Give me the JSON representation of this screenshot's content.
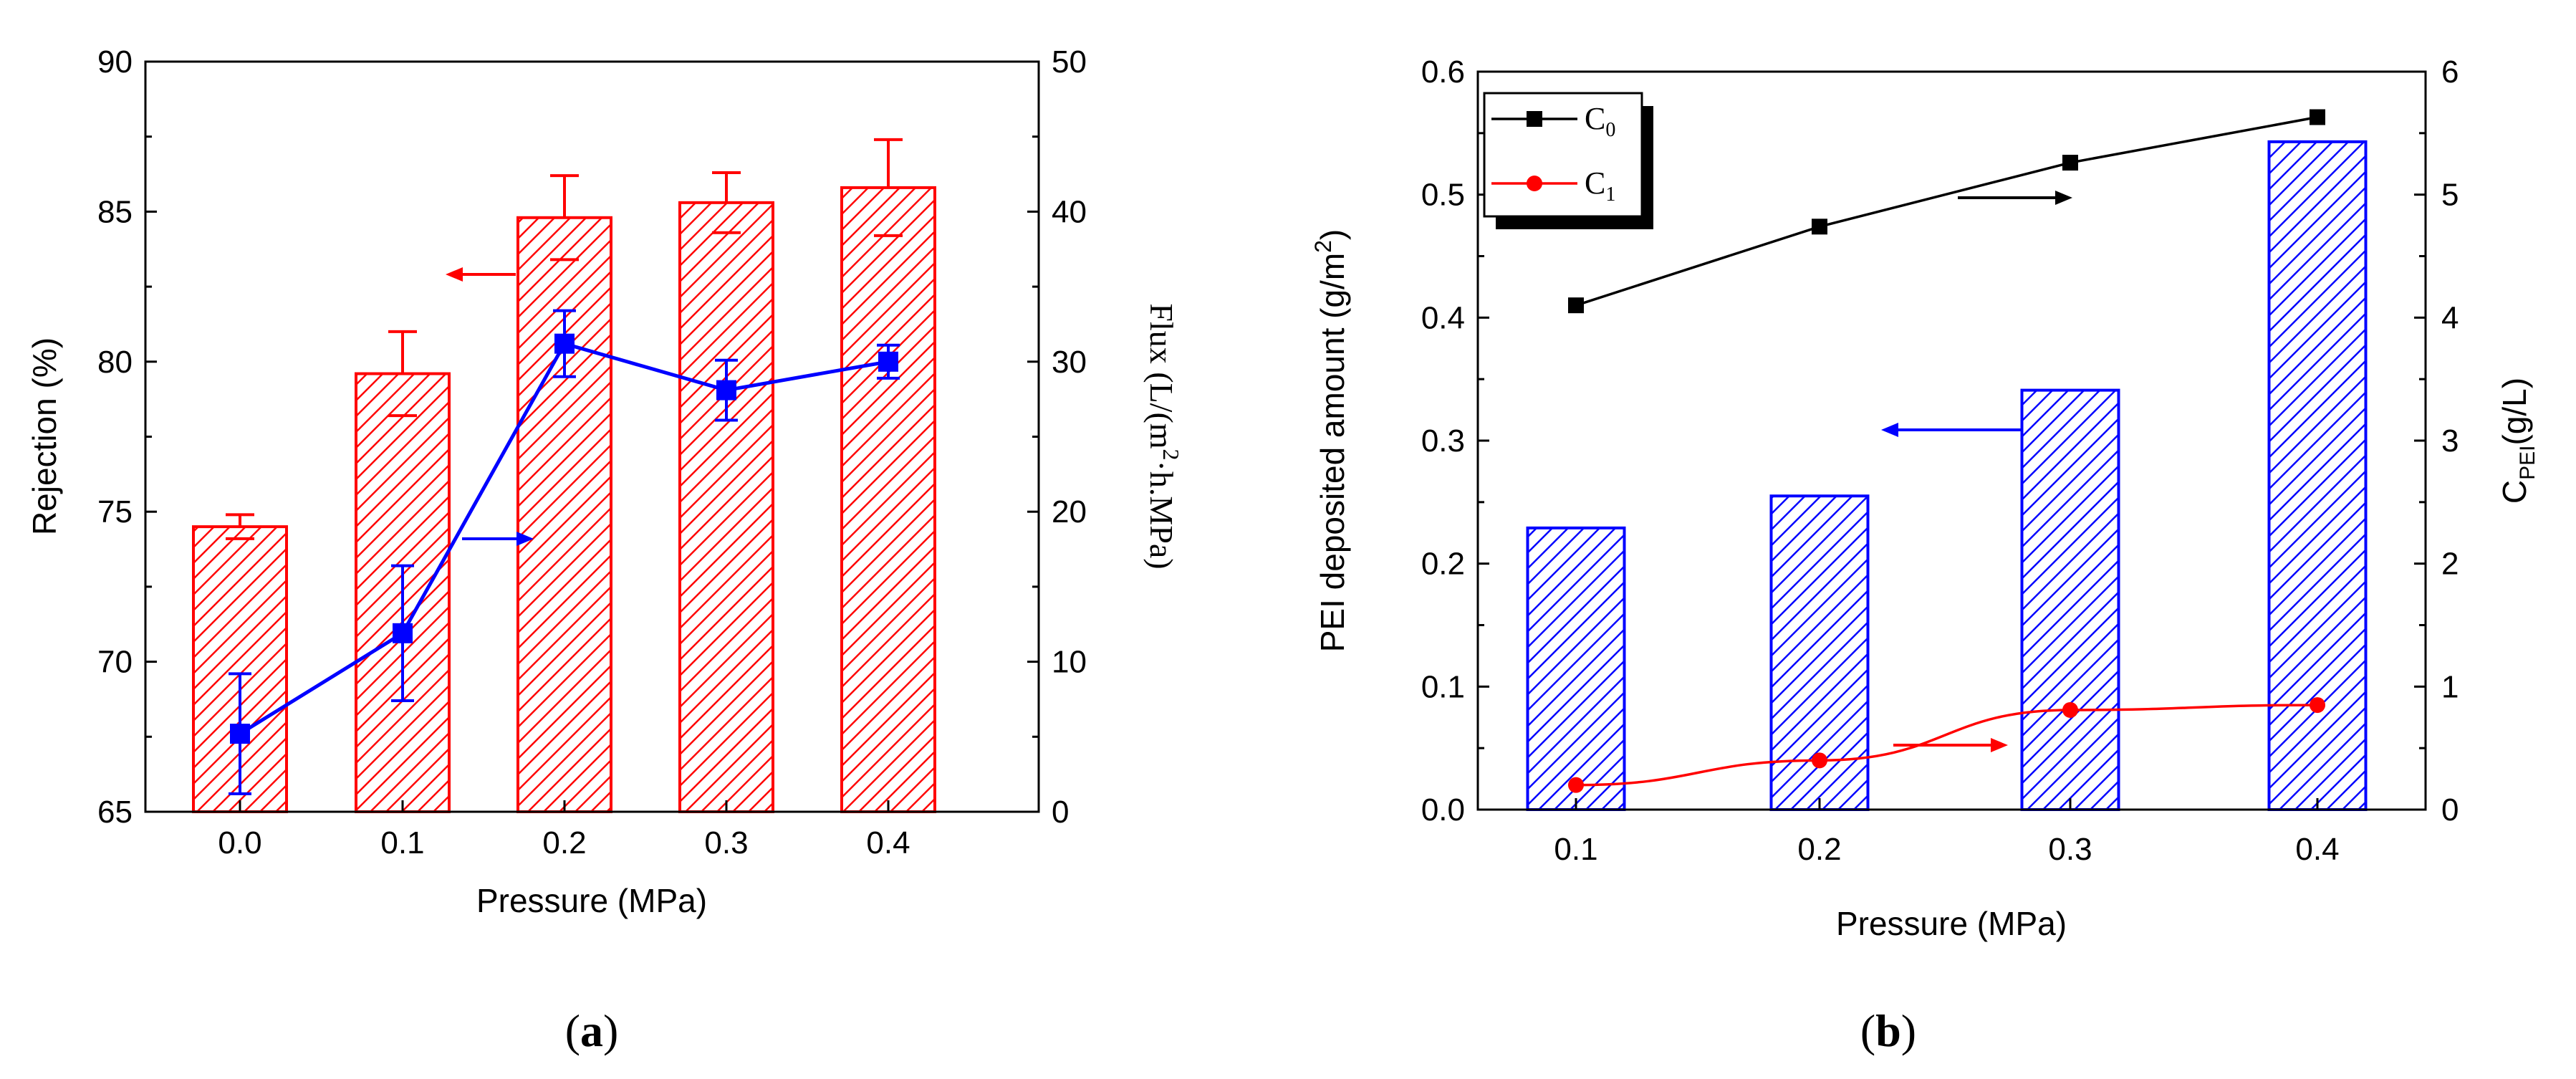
{
  "colors": {
    "red": "#ff0000",
    "blue": "#0000ff",
    "black": "#000000"
  },
  "chart_data": [
    {
      "panel": "a",
      "caption": "(a)",
      "caption_parts": {
        "open": "(",
        "letter": "a",
        "close": ")"
      },
      "type": "bar+line",
      "xlabel": "Pressure (MPa)",
      "ylabel_left": "Rejection (%)",
      "ylabel_right": "Flux (L/(m",
      "ylabel_right_sup": "2",
      "ylabel_right_tail": "h.MPa)",
      "categories": [
        "0.0",
        "0.1",
        "0.2",
        "0.3",
        "0.4"
      ],
      "ylim_left": [
        65,
        90
      ],
      "yticks_left": [
        "65",
        "70",
        "75",
        "80",
        "85",
        "90"
      ],
      "ylim_right": [
        0,
        50
      ],
      "yticks_right": [
        "0",
        "10",
        "20",
        "30",
        "40",
        "50"
      ],
      "series": [
        {
          "name": "Rejection",
          "type": "bar",
          "axis": "left",
          "color": "#ff0000",
          "values": [
            74.5,
            79.6,
            84.8,
            85.3,
            85.8
          ],
          "errors": [
            0.4,
            1.4,
            1.4,
            1.0,
            1.6
          ]
        },
        {
          "name": "Flux",
          "type": "line",
          "axis": "right",
          "color": "#0000ff",
          "values": [
            5.2,
            11.9,
            31.2,
            28.1,
            30.0
          ],
          "errors": [
            4.0,
            4.5,
            2.2,
            2.0,
            1.1
          ]
        }
      ],
      "annotations": [
        {
          "note": "arrow pointing left toward rejection axis",
          "color": "#ff0000",
          "direction": "left"
        },
        {
          "note": "arrow pointing right toward flux axis",
          "color": "#0000ff",
          "direction": "right"
        }
      ]
    },
    {
      "panel": "b",
      "caption": "(b)",
      "caption_parts": {
        "open": "(",
        "letter": "b",
        "close": ")"
      },
      "type": "bar+line",
      "xlabel": "Pressure (MPa)",
      "ylabel_left": "PEI deposited amount (g/m",
      "ylabel_left_sup": "2",
      "ylabel_left_tail": ")",
      "ylabel_right": "C",
      "ylabel_right_sub": "PEI",
      "ylabel_right_tail": "(g/L)",
      "categories": [
        "0.1",
        "0.2",
        "0.3",
        "0.4"
      ],
      "ylim_left": [
        0,
        0.6
      ],
      "yticks_left": [
        "0.0",
        "0.1",
        "0.2",
        "0.3",
        "0.4",
        "0.5",
        "0.6"
      ],
      "ylim_right": [
        0,
        6
      ],
      "yticks_right": [
        "0",
        "1",
        "2",
        "3",
        "4",
        "5",
        "6"
      ],
      "series": [
        {
          "name": "PEI deposited amount",
          "type": "bar",
          "axis": "left",
          "color": "#0000ff",
          "values": [
            0.229,
            0.255,
            0.341,
            0.543
          ]
        },
        {
          "name": "C0",
          "label": "C",
          "label_sub": "0",
          "type": "line",
          "axis": "right",
          "color": "#000000",
          "values": [
            4.1,
            4.74,
            5.26,
            5.63
          ]
        },
        {
          "name": "C1",
          "label": "C",
          "label_sub": "1",
          "type": "line",
          "axis": "right",
          "color": "#ff0000",
          "values": [
            0.2,
            0.4,
            0.81,
            0.85
          ]
        }
      ],
      "legend": {
        "position": "top-left"
      },
      "annotations": [
        {
          "note": "arrow pointing right (C0 on right axis)",
          "color": "#000000",
          "direction": "right"
        },
        {
          "note": "arrow pointing left (bars on left axis)",
          "color": "#0000ff",
          "direction": "left"
        },
        {
          "note": "arrow pointing right (C1 on right axis)",
          "color": "#ff0000",
          "direction": "right"
        }
      ]
    }
  ]
}
